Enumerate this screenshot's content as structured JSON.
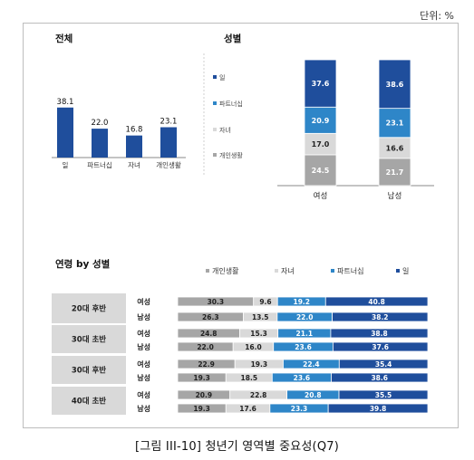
{
  "unit_label": "단위: %",
  "caption": "[그림 III-10] 청년기 영역별 중요성(Q7)",
  "colors": {
    "work": "#1f4e9c",
    "partner": "#2e86c8",
    "children": "#d9d9d9",
    "personal": "#a6a6a6"
  },
  "chart_data": [
    {
      "type": "bar",
      "title": "전체",
      "categories": [
        "일",
        "파트너십",
        "자녀",
        "개인생활"
      ],
      "values": [
        38.1,
        22.0,
        16.8,
        23.1
      ],
      "value_labels": [
        "38.1",
        "22.0",
        "16.8",
        "23.1"
      ]
    },
    {
      "type": "bar",
      "stacked": true,
      "orientation": "vertical",
      "title": "성별",
      "categories": [
        "여성",
        "남성"
      ],
      "legend": [
        "일",
        "파트너십",
        "자녀",
        "개인생활"
      ],
      "series": [
        {
          "name": "개인생활",
          "color": "#a6a6a6",
          "values": [
            24.5,
            21.7
          ],
          "labels": [
            "24.5",
            "21.7"
          ]
        },
        {
          "name": "자녀",
          "color": "#d9d9d9",
          "values": [
            17.0,
            16.6
          ],
          "labels": [
            "17.0",
            "16.6"
          ]
        },
        {
          "name": "파트너십",
          "color": "#2e86c8",
          "values": [
            20.9,
            23.1
          ],
          "labels": [
            "20.9",
            "23.1"
          ]
        },
        {
          "name": "일",
          "color": "#1f4e9c",
          "values": [
            37.6,
            38.6
          ],
          "labels": [
            "37.6",
            "38.6"
          ]
        }
      ]
    },
    {
      "type": "bar",
      "stacked": true,
      "orientation": "horizontal",
      "title": "연령 by 성별",
      "legend": [
        "개인생활",
        "자녀",
        "파트너십",
        "일"
      ],
      "groups": [
        "20대 후반",
        "30대 초반",
        "30대 후반",
        "40대 초반"
      ],
      "row_labels": [
        "여성",
        "남성"
      ],
      "series": [
        {
          "name": "개인생활",
          "color": "#a6a6a6",
          "values": [
            30.3,
            26.3,
            24.8,
            22.0,
            22.9,
            19.3,
            20.9,
            19.3
          ],
          "labels": [
            "30.3",
            "26.3",
            "24.8",
            "22.0",
            "22.9",
            "19.3",
            "20.9",
            "19.3"
          ]
        },
        {
          "name": "자녀",
          "color": "#d9d9d9",
          "values": [
            9.6,
            13.5,
            15.3,
            16.0,
            19.3,
            18.5,
            22.8,
            17.6
          ],
          "labels": [
            "9.6",
            "13.5",
            "15.3",
            "16.0",
            "19.3",
            "18.5",
            "22.8",
            "17.6"
          ]
        },
        {
          "name": "파트너십",
          "color": "#2e86c8",
          "values": [
            19.2,
            22.0,
            21.1,
            23.6,
            22.4,
            23.6,
            20.8,
            23.3
          ],
          "labels": [
            "19.2",
            "22.0",
            "21.1",
            "23.6",
            "22.4",
            "23.6",
            "20.8",
            "23.3"
          ]
        },
        {
          "name": "일",
          "color": "#1f4e9c",
          "values": [
            40.8,
            38.2,
            38.8,
            37.6,
            35.4,
            38.6,
            35.5,
            39.8
          ],
          "labels": [
            "40.8",
            "38.2",
            "38.8",
            "37.6",
            "35.4",
            "38.6",
            "35.5",
            "39.8"
          ]
        }
      ]
    }
  ]
}
